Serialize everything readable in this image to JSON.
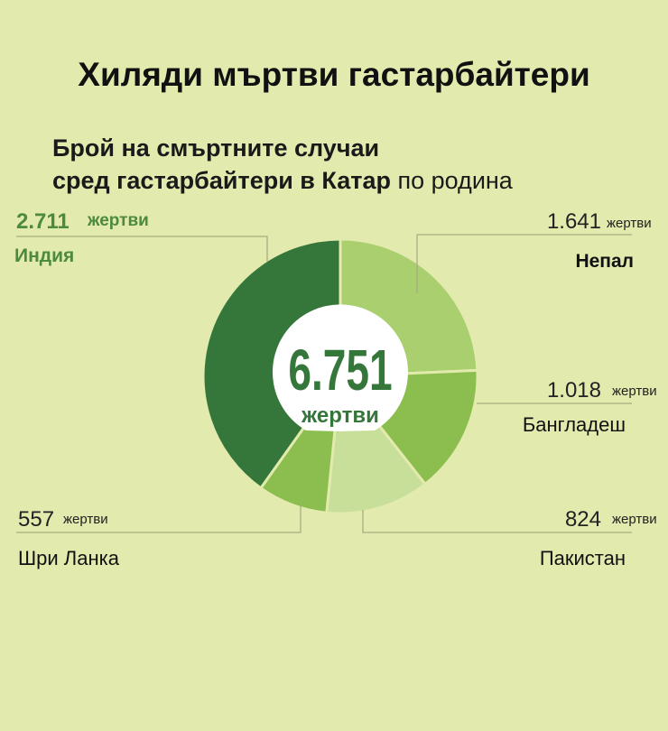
{
  "title": "Хиляди мъртви гастарбайтери",
  "subtitle": {
    "line1": "Брой на смъртните случаи",
    "line2": "сред гастарбайтери в Катар",
    "suffix": "по родина"
  },
  "colors": {
    "background": "#e2eaae",
    "divider": "#e2eaae",
    "leader": "#a8ae80"
  },
  "chart_data": {
    "type": "pie",
    "style": "donut",
    "total": {
      "value": "6.751",
      "label": "жертви"
    },
    "unit": "жертви",
    "slices": [
      {
        "name": "Непал",
        "value": 1641,
        "value_label": "1.641",
        "color": "#a9cf6f"
      },
      {
        "name": "Бангладеш",
        "value": 1018,
        "value_label": "1.018",
        "color": "#8cbe4f"
      },
      {
        "name": "Пакистан",
        "value": 824,
        "value_label": "824",
        "color": "#c7df98"
      },
      {
        "name": "Шри Ланка",
        "value": 557,
        "value_label": "557",
        "color": "#8cbe4f"
      },
      {
        "name": "Индия",
        "value": 2711,
        "value_label": "2.711",
        "color": "#35773a"
      }
    ]
  }
}
